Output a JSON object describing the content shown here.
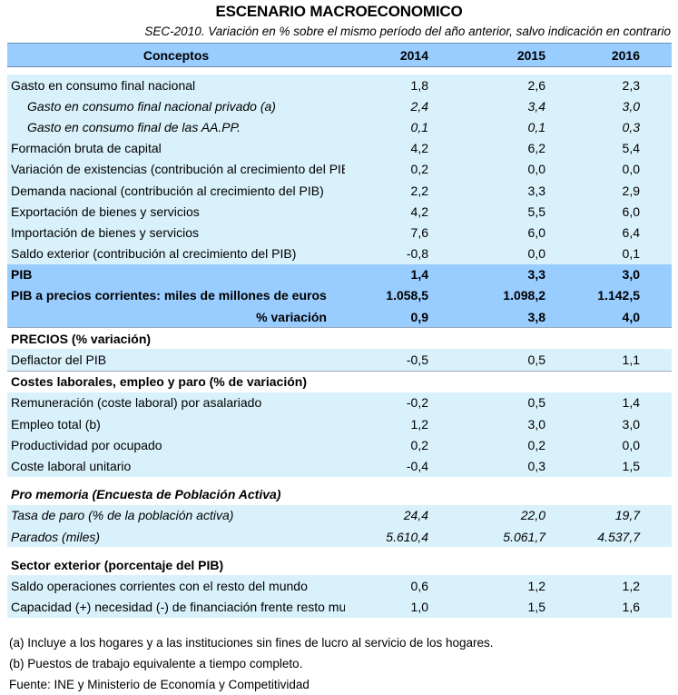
{
  "title": "ESCENARIO MACROECONOMICO",
  "subtitle": "SEC-2010. Variación en % sobre el mismo período del año anterior, salvo indicación en contrario",
  "header": {
    "concept": "Conceptos",
    "y1": "2014",
    "y2": "2015",
    "y3": "2016"
  },
  "rows": [
    {
      "label": "Gasto en consumo final nacional",
      "v": [
        "1,8",
        "2,6",
        "2,3"
      ]
    },
    {
      "label": "Gasto en consumo final nacional privado (a)",
      "v": [
        "2,4",
        "3,4",
        "3,0"
      ]
    },
    {
      "label": "Gasto en consumo final de las AA.PP.",
      "v": [
        "0,1",
        "0,1",
        "0,3"
      ]
    },
    {
      "label": "Formación bruta de capital",
      "v": [
        "4,2",
        "6,2",
        "5,4"
      ]
    },
    {
      "label": "Variación de existencias (contribución al crecimiento del PIB)",
      "v": [
        "0,2",
        "0,0",
        "0,0"
      ]
    },
    {
      "label": "Demanda nacional (contribución al crecimiento del PIB)",
      "v": [
        "2,2",
        "3,3",
        "2,9"
      ]
    },
    {
      "label": "Exportación de bienes y servicios",
      "v": [
        "4,2",
        "5,5",
        "6,0"
      ]
    },
    {
      "label": "Importación de bienes y servicios",
      "v": [
        "7,6",
        "6,0",
        "6,4"
      ]
    },
    {
      "label": "Saldo exterior (contribución al crecimiento del PIB)",
      "v": [
        "-0,8",
        "0,0",
        "0,1"
      ]
    },
    {
      "label": "PIB",
      "v": [
        "1,4",
        "3,3",
        "3,0"
      ]
    },
    {
      "label": "PIB a precios corrientes: miles de millones de euros",
      "v": [
        "1.058,5",
        "1.098,2",
        "1.142,5"
      ]
    },
    {
      "label": "% variación",
      "v": [
        "0,9",
        "3,8",
        "4,0"
      ]
    },
    {
      "label": "PRECIOS (% variación)"
    },
    {
      "label": "Deflactor del PIB",
      "v": [
        "-0,5",
        "0,5",
        "1,1"
      ]
    },
    {
      "label": "Costes laborales, empleo y  paro (% de variación)"
    },
    {
      "label": "Remuneración (coste laboral) por asalariado",
      "v": [
        "-0,2",
        "0,5",
        "1,4"
      ]
    },
    {
      "label": "Empleo total (b)",
      "v": [
        "1,2",
        "3,0",
        "3,0"
      ]
    },
    {
      "label": "Productividad por ocupado",
      "v": [
        "0,2",
        "0,2",
        "0,0"
      ]
    },
    {
      "label": "Coste laboral unitario",
      "v": [
        "-0,4",
        "0,3",
        "1,5"
      ]
    },
    {
      "label": "Pro memoria (Encuesta de Población Activa)"
    },
    {
      "label": "Tasa de paro (% de la población activa)",
      "v": [
        "24,4",
        "22,0",
        "19,7"
      ]
    },
    {
      "label": "Parados (miles)",
      "v": [
        "5.610,4",
        "5.061,7",
        "4.537,7"
      ]
    },
    {
      "label": "Sector exterior (porcentaje del PIB)"
    },
    {
      "label": "Saldo operaciones corrientes con el resto del mundo",
      "v": [
        "0,6",
        "1,2",
        "1,2"
      ]
    },
    {
      "label": "Capacidad (+) necesidad (-) de financiación frente resto mundo",
      "v": [
        "1,0",
        "1,5",
        "1,6"
      ]
    }
  ],
  "notes": [
    "(a) Incluye a los hogares y a las instituciones sin fines de lucro al servicio de los hogares.",
    "(b) Puestos de trabajo equivalente a tiempo completo.",
    "Fuente: INE y Ministerio de Economía y Competitividad"
  ],
  "colors": {
    "header": "#99ccff",
    "light": "#d9f1fb",
    "dark": "#99ccff"
  }
}
